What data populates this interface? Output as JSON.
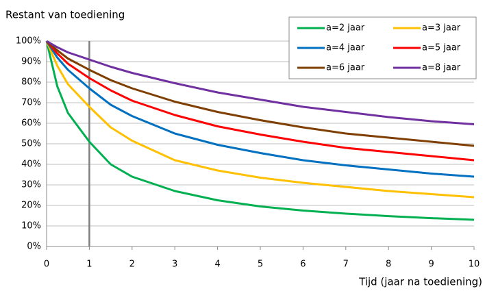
{
  "chart_data": {
    "type": "line",
    "ylabel": "Restant van toediening",
    "xlabel": "Tijd (jaar na toediening)",
    "x": [
      0,
      0.25,
      0.5,
      1,
      1.5,
      2,
      3,
      4,
      5,
      6,
      7,
      8,
      9,
      10
    ],
    "series": [
      {
        "name": "a=2 jaar",
        "color": "#00b050",
        "values": [
          100,
          78,
          65,
          51,
          40,
          34,
          27,
          22.5,
          19.5,
          17.5,
          16,
          14.8,
          13.8,
          13
        ]
      },
      {
        "name": "a=3 jaar",
        "color": "#ffc000",
        "values": [
          100,
          88,
          79,
          68,
          58,
          51.5,
          42,
          37,
          33.5,
          31,
          29,
          27,
          25.5,
          24
        ]
      },
      {
        "name": "a=4 jaar",
        "color": "#0070c0",
        "values": [
          100,
          92,
          86,
          77,
          69,
          63.5,
          55,
          49.5,
          45.5,
          42,
          39.5,
          37.5,
          35.5,
          34
        ]
      },
      {
        "name": "a=5 jaar",
        "color": "#ff0000",
        "values": [
          100,
          94,
          89,
          82,
          76,
          71,
          64,
          58.5,
          54.5,
          51,
          48,
          46,
          44,
          42
        ]
      },
      {
        "name": "a=6 jaar",
        "color": "#7f3f00",
        "values": [
          100,
          95.5,
          91.5,
          86,
          81,
          77,
          70.5,
          65.5,
          61.5,
          58,
          55,
          53,
          51,
          49
        ]
      },
      {
        "name": "a=8 jaar",
        "color": "#7030a0",
        "values": [
          100,
          97,
          94.5,
          91,
          87.5,
          84.5,
          79.5,
          75,
          71.5,
          68,
          65.5,
          63,
          61,
          59.5
        ]
      }
    ],
    "reference_x": 1,
    "xlim": [
      0,
      10
    ],
    "xticks": [
      0,
      1,
      2,
      3,
      4,
      5,
      6,
      7,
      8,
      9,
      10
    ],
    "ylim": [
      0,
      100
    ],
    "yticks": [
      {
        "value": 0,
        "label": "0%"
      },
      {
        "value": 10,
        "label": "10%"
      },
      {
        "value": 20,
        "label": "20%"
      },
      {
        "value": 30,
        "label": "30%"
      },
      {
        "value": 40,
        "label": "40%"
      },
      {
        "value": 50,
        "label": "50%"
      },
      {
        "value": 60,
        "label": "60%"
      },
      {
        "value": 70,
        "label": "70%"
      },
      {
        "value": 80,
        "label": "80%"
      },
      {
        "value": 90,
        "label": "90%"
      },
      {
        "value": 100,
        "label": "100%"
      }
    ],
    "grid": true
  }
}
